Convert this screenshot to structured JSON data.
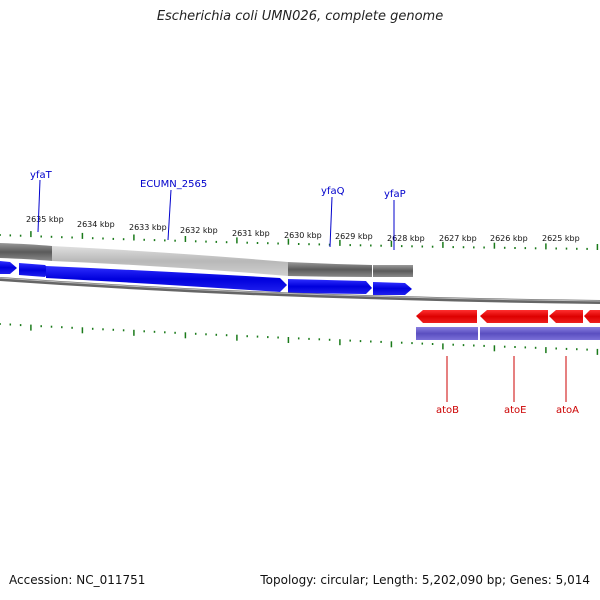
{
  "title": "Escherichia coli UMN026, complete genome",
  "footer": {
    "accession": "Accession: NC_011751",
    "topology": "Topology: circular; Length: 5,202,090 bp; Genes: 5,014"
  },
  "ticks": [
    "2635 kbp",
    "2634 kbp",
    "2633 kbp",
    "2632 kbp",
    "2631 kbp",
    "2630 kbp",
    "2629 kbp",
    "2628 kbp",
    "2627 kbp",
    "2626 kbp",
    "2625 kbp"
  ],
  "forward_gene_labels": [
    "yfaT",
    "ECUMN_2565",
    "yfaQ",
    "yfaP"
  ],
  "reverse_gene_labels": [
    "atoB",
    "atoE",
    "atoA"
  ],
  "colors": {
    "forward": "#0000ee",
    "reverse": "#ee0000",
    "operon_purple": "#6a5acd",
    "gc_tick": "#1a7a1a",
    "backbone": "#777777"
  }
}
